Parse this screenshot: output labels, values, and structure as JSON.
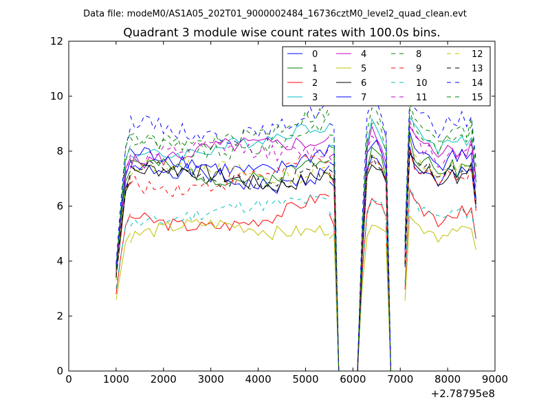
{
  "suptitle": "Data file: modeM0/AS1A05_202T01_9000002484_16736cztM0_level2_quad_clean.evt",
  "chart_data": {
    "type": "line",
    "title": "Quadrant 3 module wise count rates with 100.0s bins.",
    "xlabel": "",
    "ylabel": "",
    "x_offset_label": "+2.78795e8",
    "xlim": [
      0,
      9000
    ],
    "ylim": [
      0,
      12
    ],
    "xticks": [
      0,
      1000,
      2000,
      3000,
      4000,
      5000,
      6000,
      7000,
      8000,
      9000
    ],
    "yticks": [
      0,
      2,
      4,
      6,
      8,
      10,
      12
    ],
    "grid": false,
    "legend_position": "top-right",
    "series": [
      {
        "name": "0",
        "color": "#0000ff",
        "dashed": false,
        "base": 7.0,
        "start": 3.7,
        "noise": 0.3,
        "seed": 1
      },
      {
        "name": "1",
        "color": "#008000",
        "dashed": false,
        "base": 7.3,
        "start": 3.6,
        "noise": 0.3,
        "seed": 2
      },
      {
        "name": "2",
        "color": "#ff0000",
        "dashed": false,
        "base": 5.6,
        "start": 2.8,
        "noise": 0.25,
        "seed": 3
      },
      {
        "name": "3",
        "color": "#00bfbf",
        "dashed": false,
        "base": 8.2,
        "start": 3.8,
        "noise": 0.25,
        "seed": 4
      },
      {
        "name": "4",
        "color": "#bf00bf",
        "dashed": false,
        "base": 7.9,
        "start": 3.5,
        "noise": 0.3,
        "seed": 5
      },
      {
        "name": "5",
        "color": "#bfbf00",
        "dashed": false,
        "base": 5.0,
        "start": 2.6,
        "noise": 0.25,
        "seed": 6
      },
      {
        "name": "6",
        "color": "#000000",
        "dashed": false,
        "base": 7.0,
        "start": 3.4,
        "noise": 0.3,
        "seed": 7
      },
      {
        "name": "7",
        "color": "#0000ff",
        "dashed": false,
        "base": 7.6,
        "start": 3.8,
        "noise": 0.3,
        "seed": 8
      },
      {
        "name": "8",
        "color": "#008000",
        "dashed": true,
        "base": 8.3,
        "start": 3.5,
        "noise": 0.3,
        "seed": 9
      },
      {
        "name": "9",
        "color": "#ff0000",
        "dashed": true,
        "base": 7.0,
        "start": 3.4,
        "noise": 0.3,
        "seed": 10
      },
      {
        "name": "10",
        "color": "#00bfbf",
        "dashed": true,
        "base": 5.7,
        "start": 3.0,
        "noise": 0.25,
        "seed": 11
      },
      {
        "name": "11",
        "color": "#bf00bf",
        "dashed": true,
        "base": 7.8,
        "start": 3.6,
        "noise": 0.3,
        "seed": 12
      },
      {
        "name": "12",
        "color": "#bfbf00",
        "dashed": true,
        "base": 7.2,
        "start": 3.3,
        "noise": 0.3,
        "seed": 13
      },
      {
        "name": "13",
        "color": "#000000",
        "dashed": true,
        "base": 7.1,
        "start": 3.4,
        "noise": 0.3,
        "seed": 14
      },
      {
        "name": "14",
        "color": "#0000ff",
        "dashed": true,
        "base": 8.9,
        "start": 3.9,
        "noise": 0.3,
        "seed": 15
      },
      {
        "name": "15",
        "color": "#008000",
        "dashed": true,
        "base": 8.6,
        "start": 3.7,
        "noise": 0.3,
        "seed": 16
      }
    ],
    "time_segments": [
      {
        "x": [
          1000,
          1100,
          1200,
          1300
        ],
        "profile": [
          1.0,
          1.55,
          2.05,
          2.2
        ]
      },
      {
        "x": [
          1300,
          1400,
          1500,
          1600,
          1700,
          1800,
          1900,
          2000,
          2100,
          2200,
          2300,
          2400,
          2500,
          2600,
          2700,
          2800,
          2900,
          3000,
          3100,
          3200,
          3300,
          3400,
          3500,
          3600,
          3700,
          3800,
          3900,
          4000,
          4100,
          4200,
          4300,
          4400,
          4500,
          4600,
          4700,
          4800,
          4900,
          5000,
          5100,
          5200,
          5300,
          5400,
          5500
        ],
        "profile": "steady"
      },
      {
        "x": [
          5500,
          5600,
          5700,
          5800,
          5900,
          6000,
          6100
        ],
        "profile": [
          1.0,
          0.98,
          0.0,
          0.0,
          0.0,
          0.0,
          0.0
        ]
      },
      {
        "x": [
          6100,
          6200,
          6300,
          6400,
          6500,
          6600,
          6700
        ],
        "profile": [
          0.02,
          0.62,
          1.02,
          1.1,
          1.08,
          1.05,
          0.97
        ]
      },
      {
        "x": [
          6700,
          6800,
          6900,
          7000,
          7100
        ],
        "profile": [
          0.97,
          0.0,
          0.0,
          0.0,
          0.0
        ]
      },
      {
        "x": [
          7100,
          7200,
          7300,
          7400,
          7500,
          7600,
          7700,
          7800,
          7900,
          8000,
          8100,
          8200,
          8300,
          8400,
          8500,
          8600
        ],
        "profile": [
          0.55,
          1.15,
          1.08,
          1.05,
          1.03,
          1.04,
          1.01,
          0.97,
          0.99,
          1.02,
          1.03,
          1.0,
          1.04,
          1.01,
          1.05,
          0.85
        ]
      }
    ]
  }
}
